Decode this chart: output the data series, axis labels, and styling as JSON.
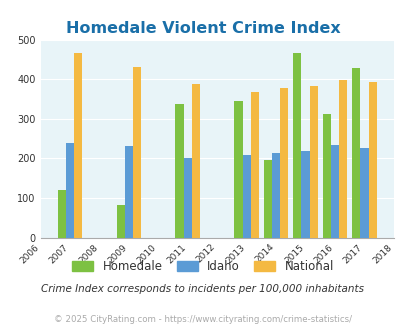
{
  "title": "Homedale Violent Crime Index",
  "years": [
    2007,
    2009,
    2011,
    2013,
    2014,
    2015,
    2016,
    2017
  ],
  "homedale": [
    120,
    83,
    337,
    345,
    196,
    465,
    312,
    428
  ],
  "idaho": [
    240,
    231,
    202,
    208,
    214,
    218,
    233,
    227
  ],
  "national": [
    466,
    432,
    387,
    367,
    377,
    383,
    397,
    394
  ],
  "color_homedale": "#7dc142",
  "color_idaho": "#5b9bd5",
  "color_national": "#f4b942",
  "xlim": [
    2006,
    2018
  ],
  "ylim": [
    0,
    500
  ],
  "yticks": [
    0,
    100,
    200,
    300,
    400,
    500
  ],
  "xticks": [
    2006,
    2007,
    2008,
    2009,
    2010,
    2011,
    2012,
    2013,
    2014,
    2015,
    2016,
    2017,
    2018
  ],
  "bg_color": "#e8f4f8",
  "title_color": "#1a6fa8",
  "footnote1": "Crime Index corresponds to incidents per 100,000 inhabitants",
  "footnote2": "© 2025 CityRating.com - https://www.cityrating.com/crime-statistics/",
  "bar_width": 0.28
}
